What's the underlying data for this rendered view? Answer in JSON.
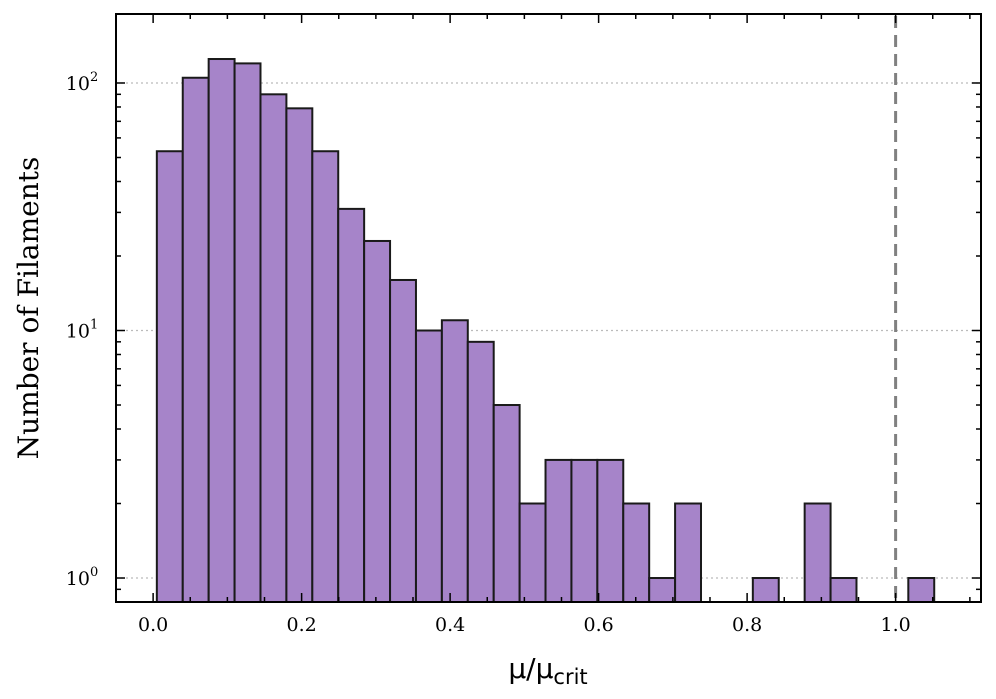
{
  "chart_data": {
    "type": "bar",
    "title": "",
    "xlabel": {
      "main": "μ/μ",
      "sub": "crit"
    },
    "ylabel": "Number of Filaments",
    "yscale": "log",
    "xlim": [
      -0.05,
      1.115
    ],
    "ylim": [
      0.8,
      190
    ],
    "bin_width": 0.0349,
    "bin_left_edges": [
      0.005,
      0.0399,
      0.0748,
      0.1097,
      0.1446,
      0.1795,
      0.2144,
      0.2493,
      0.2842,
      0.3191,
      0.354,
      0.3889,
      0.4238,
      0.4587,
      0.4936,
      0.5285,
      0.5634,
      0.5983,
      0.6332,
      0.6681,
      0.703,
      0.7379,
      0.7728,
      0.8077,
      0.8426,
      0.8775,
      0.9124,
      0.9473,
      0.9822,
      1.0171
    ],
    "values": [
      53,
      105,
      125,
      120,
      90,
      79,
      53,
      31,
      23,
      16,
      10,
      11,
      9,
      5,
      2,
      3,
      3,
      3,
      2,
      1,
      2,
      0,
      0,
      1,
      0,
      2,
      1,
      0,
      0,
      1
    ],
    "x_ticks": [
      "0.0",
      "0.2",
      "0.4",
      "0.6",
      "0.8",
      "1.0"
    ],
    "x_tick_values": [
      0.0,
      0.2,
      0.4,
      0.6,
      0.8,
      1.0
    ],
    "y_ticks": [
      {
        "value": 1,
        "base": "10",
        "exp": "0"
      },
      {
        "value": 10,
        "base": "10",
        "exp": "1"
      },
      {
        "value": 100,
        "base": "10",
        "exp": "2"
      }
    ],
    "vline": {
      "x": 1.0,
      "style": "dashed",
      "color": "#808080"
    },
    "grid": "horizontal-dotted-at-major-y",
    "colors": {
      "bar_fill": "#a684c9",
      "bar_edge": "#1a1a1a",
      "grid": "#bbbbbb"
    }
  }
}
